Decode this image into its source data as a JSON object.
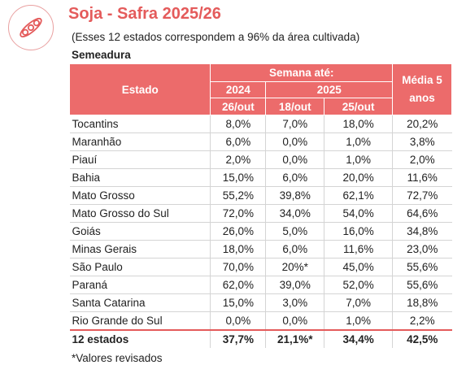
{
  "header": {
    "title": "Soja - Safra 2025/26",
    "subtitle": "(Esses 12 estados correspondem a 96% da área cultivada)",
    "section": "Semeadura",
    "logo_icon": "soybean-pod-icon",
    "accent_color": "#e45b5b"
  },
  "table": {
    "col_estado": "Estado",
    "col_semana": "Semana até:",
    "col_2024": "2024",
    "col_2025": "2025",
    "col_media": "Média  5 anos",
    "sub_2024": "26/out",
    "sub_2025a": "18/out",
    "sub_2025b": "25/out",
    "rows": [
      {
        "estado": "Tocantins",
        "v2024": "8,0%",
        "v18": "7,0%",
        "v25": "18,0%",
        "media": "20,2%"
      },
      {
        "estado": "Maranhão",
        "v2024": "6,0%",
        "v18": "0,0%",
        "v25": "1,0%",
        "media": "3,8%"
      },
      {
        "estado": "Piauí",
        "v2024": "2,0%",
        "v18": "0,0%",
        "v25": "1,0%",
        "media": "2,0%"
      },
      {
        "estado": "Bahia",
        "v2024": "15,0%",
        "v18": "6,0%",
        "v25": "20,0%",
        "media": "11,6%"
      },
      {
        "estado": "Mato Grosso",
        "v2024": "55,2%",
        "v18": "39,8%",
        "v25": "62,1%",
        "media": "72,7%"
      },
      {
        "estado": "Mato Grosso do Sul",
        "v2024": "72,0%",
        "v18": "34,0%",
        "v25": "54,0%",
        "media": "64,6%"
      },
      {
        "estado": "Goiás",
        "v2024": "26,0%",
        "v18": "5,0%",
        "v25": "16,0%",
        "media": "34,8%"
      },
      {
        "estado": "Minas Gerais",
        "v2024": "18,0%",
        "v18": "6,0%",
        "v25": "11,6%",
        "media": "23,0%"
      },
      {
        "estado": "São Paulo",
        "v2024": "70,0%",
        "v18": "20%*",
        "v25": "45,0%",
        "media": "55,6%"
      },
      {
        "estado": "Paraná",
        "v2024": "62,0%",
        "v18": "39,0%",
        "v25": "52,0%",
        "media": "55,6%"
      },
      {
        "estado": "Santa Catarina",
        "v2024": "15,0%",
        "v18": "3,0%",
        "v25": "7,0%",
        "media": "18,8%"
      },
      {
        "estado": "Rio Grande do Sul",
        "v2024": "0,0%",
        "v18": "0,0%",
        "v25": "1,0%",
        "media": "2,2%"
      }
    ],
    "total": {
      "estado": "12 estados",
      "v2024": "37,7%",
      "v18": "21,1%*",
      "v25": "34,4%",
      "media": "42,5%"
    }
  },
  "footnote": "*Valores revisados"
}
